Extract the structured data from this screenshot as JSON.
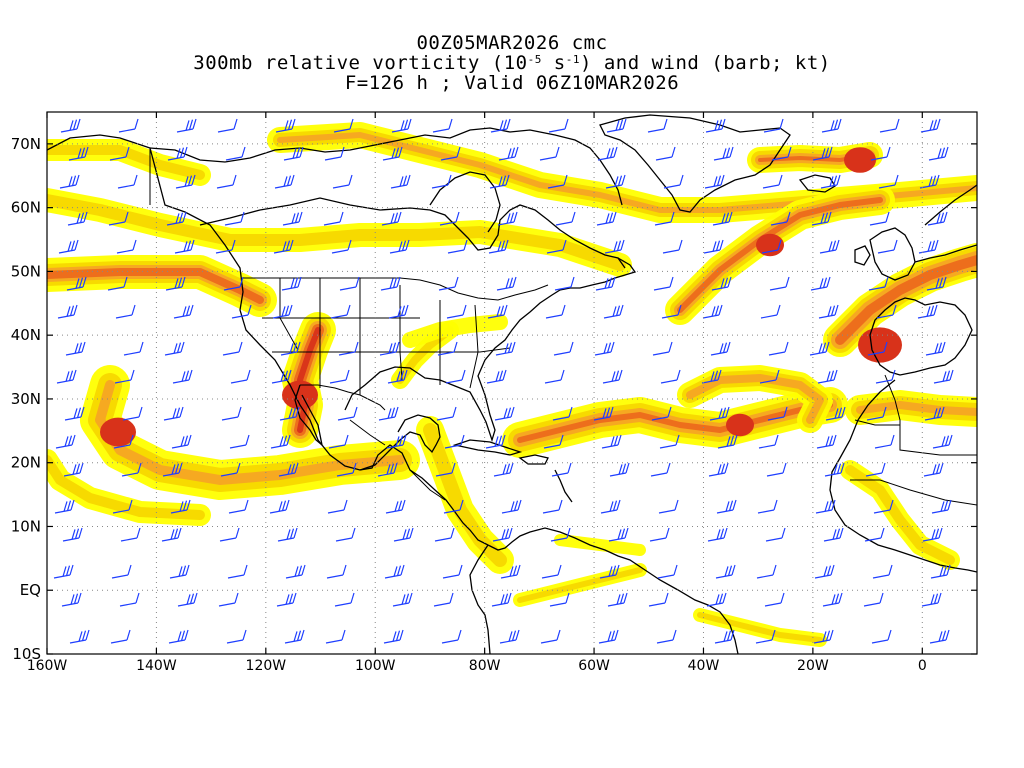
{
  "title": {
    "line1": "00Z05MAR2026 cmc",
    "line2_pre": "300mb relative vorticity (10",
    "line2_exp1": "-5",
    "line2_mid": " s",
    "line2_exp2": "-1",
    "line2_post": ") and wind (barb; kt)",
    "line3": "F=126 h ; Valid 06Z10MAR2026"
  },
  "map": {
    "projection": "cylindrical equidistant",
    "lon_range": [
      -160,
      10
    ],
    "lat_range": [
      -10,
      75
    ],
    "lat_ticks": [
      {
        "value": 70,
        "label": "70N"
      },
      {
        "value": 60,
        "label": "60N"
      },
      {
        "value": 50,
        "label": "50N"
      },
      {
        "value": 40,
        "label": "40N"
      },
      {
        "value": 30,
        "label": "30N"
      },
      {
        "value": 20,
        "label": "20N"
      },
      {
        "value": 10,
        "label": "10N"
      },
      {
        "value": 0,
        "label": "EQ"
      },
      {
        "value": -10,
        "label": "10S"
      }
    ],
    "lon_ticks": [
      {
        "value": -160,
        "label": "160W"
      },
      {
        "value": -140,
        "label": "140W"
      },
      {
        "value": -120,
        "label": "120W"
      },
      {
        "value": -100,
        "label": "100W"
      },
      {
        "value": -80,
        "label": "80W"
      },
      {
        "value": -60,
        "label": "60W"
      },
      {
        "value": -40,
        "label": "40W"
      },
      {
        "value": -20,
        "label": "20W"
      },
      {
        "value": 0,
        "label": "0"
      }
    ],
    "grid": "dotted",
    "shading_colors": [
      "#ffff00",
      "#f7d800",
      "#f5a623",
      "#ec6a1c",
      "#d8321a"
    ],
    "barb_color": "#1f3fff",
    "coastline_color": "#000000"
  }
}
